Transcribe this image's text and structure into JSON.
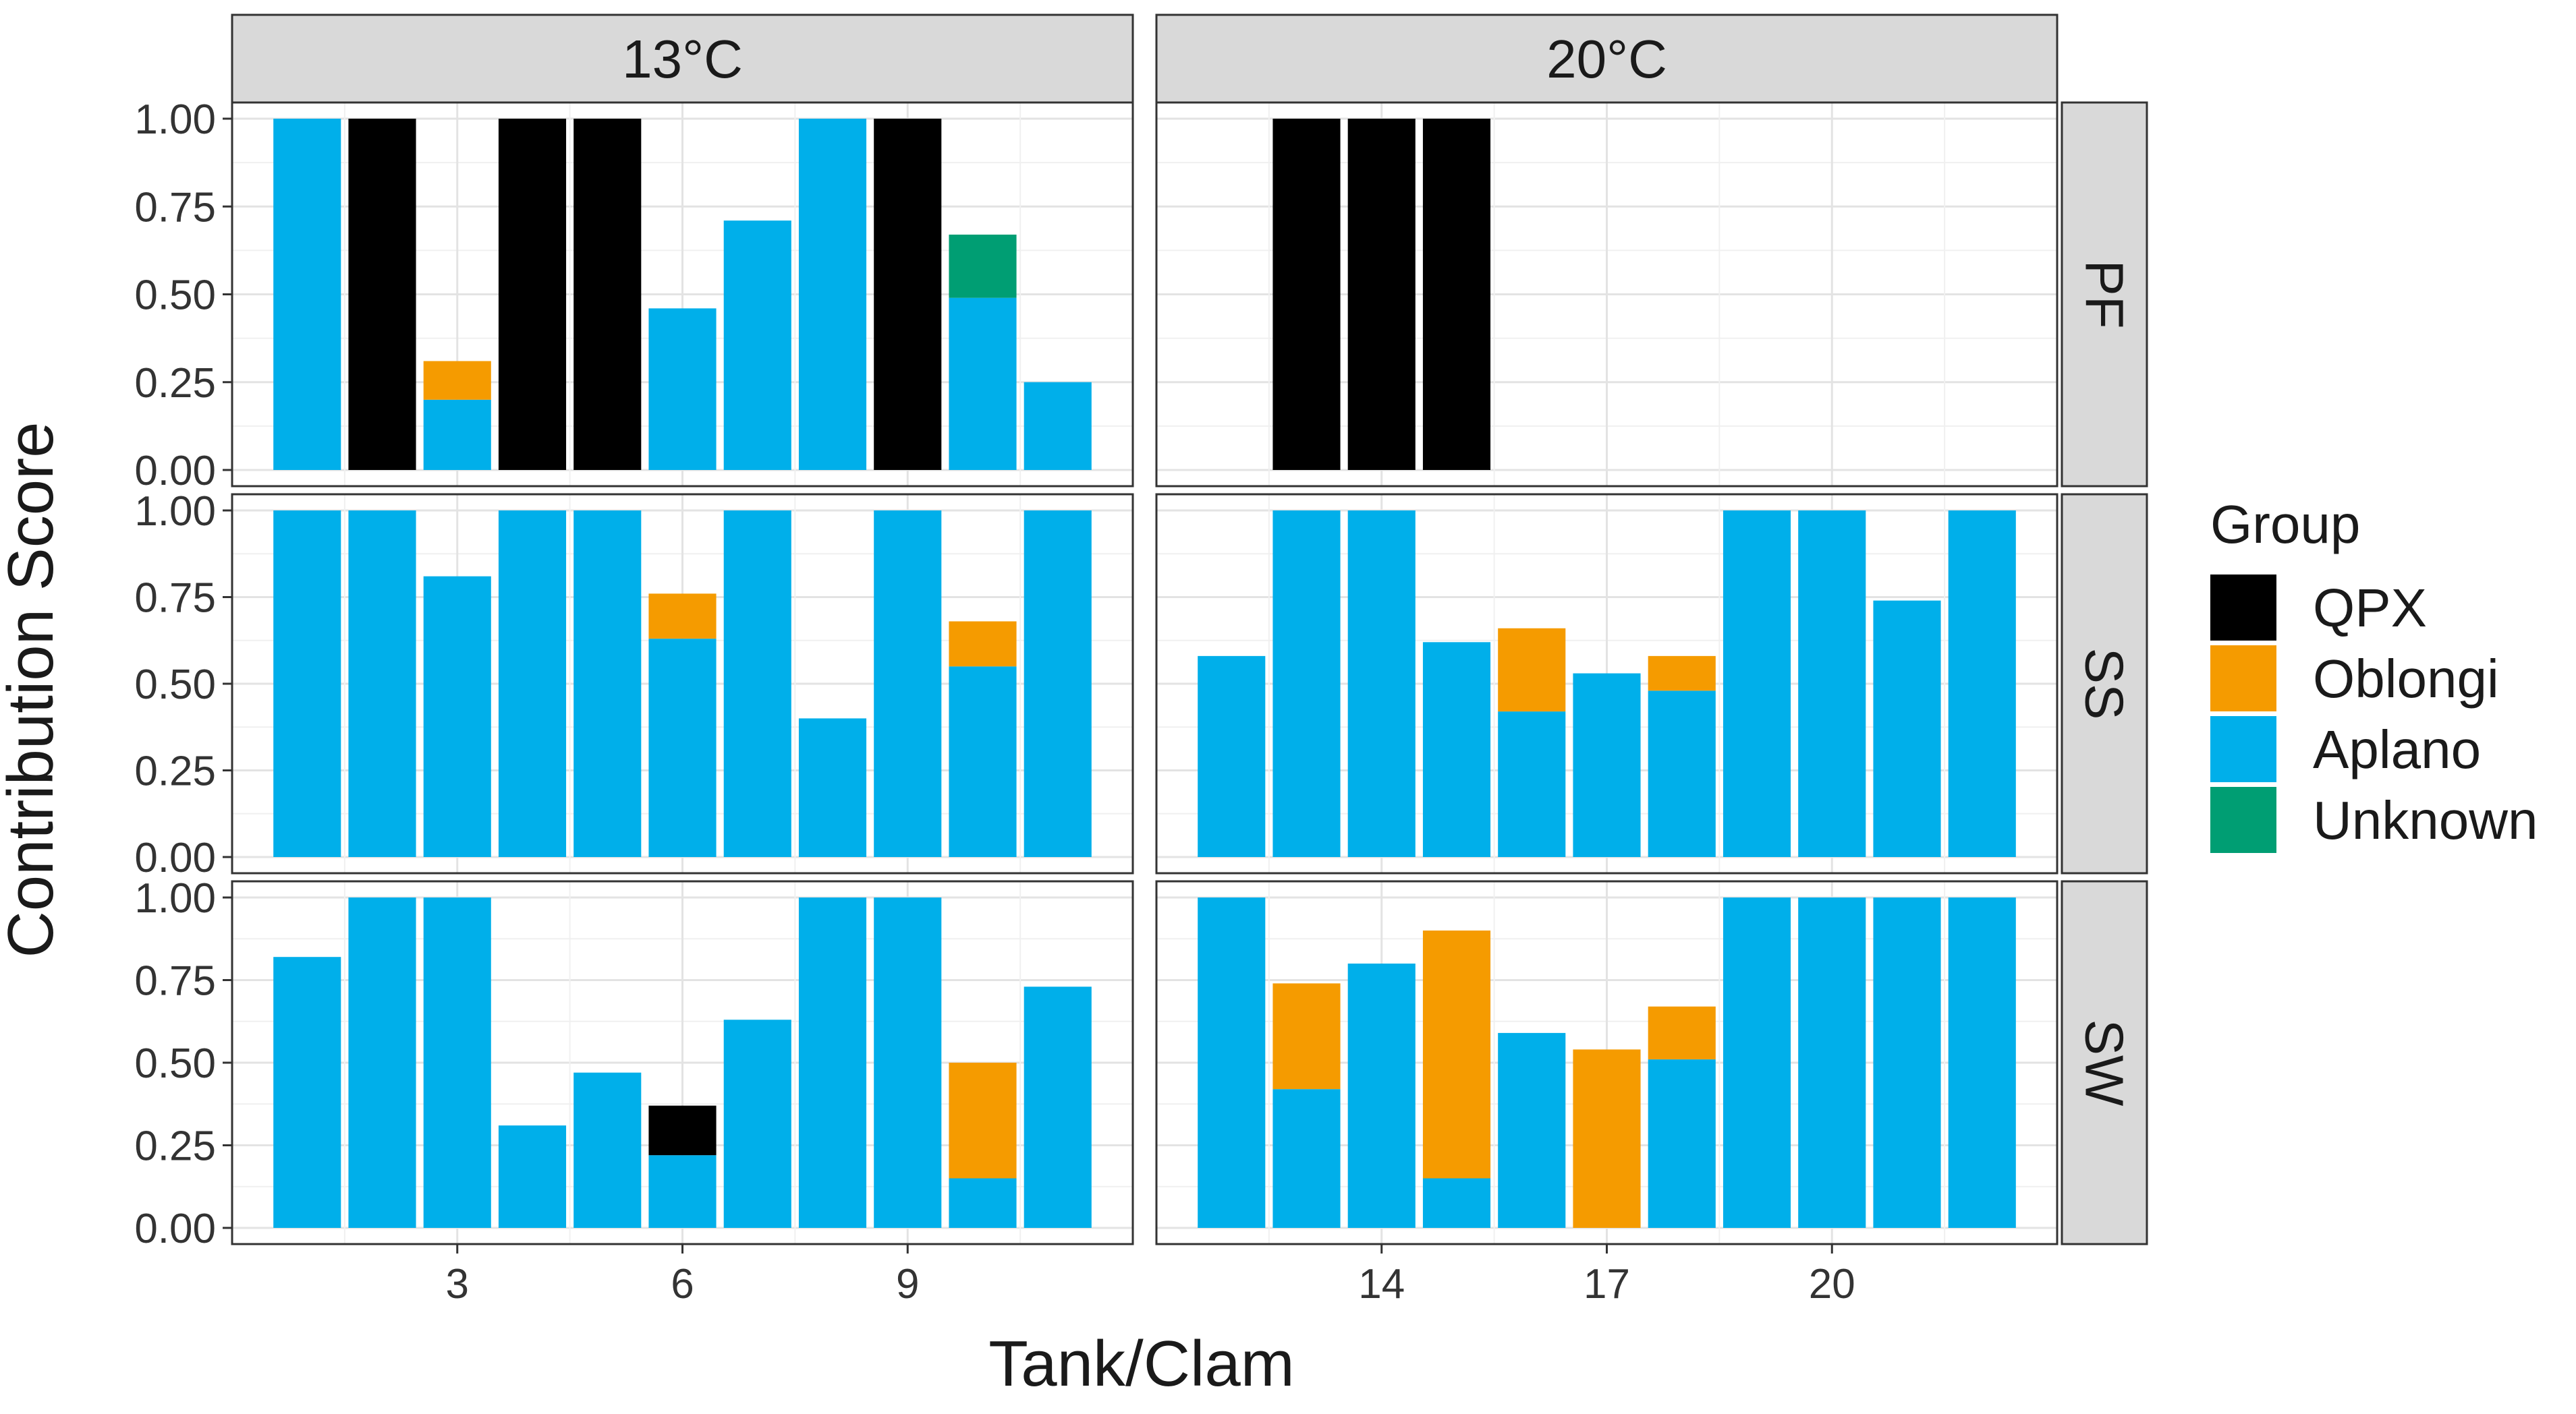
{
  "chart_data": {
    "type": "bar",
    "stacked": true,
    "xlabel": "Tank/Clam",
    "ylabel": "Contribution Score",
    "ylim": [
      0,
      1
    ],
    "y_ticks": [
      "0.00",
      "0.25",
      "0.50",
      "0.75",
      "1.00"
    ],
    "y_tick_values": [
      0,
      0.25,
      0.5,
      0.75,
      1
    ],
    "grid": true,
    "columns": [
      {
        "label": "13°C",
        "xlim": [
          0,
          12
        ],
        "x_ticks": [
          3,
          6,
          9
        ],
        "x_tick_labels": [
          "3",
          "6",
          "9"
        ]
      },
      {
        "label": "20°C",
        "xlim": [
          11,
          23
        ],
        "x_ticks": [
          14,
          17,
          20
        ],
        "x_tick_labels": [
          "14",
          "17",
          "20"
        ]
      }
    ],
    "rows": [
      "PF",
      "SS",
      "SW"
    ],
    "legend": {
      "title": "Group",
      "position": "right",
      "items": [
        {
          "name": "QPX",
          "color": "#000000"
        },
        {
          "name": "Oblongi",
          "color": "#F59B00"
        },
        {
          "name": "Aplano",
          "color": "#00AFEA"
        },
        {
          "name": "Unknown",
          "color": "#009E73"
        }
      ]
    },
    "series_order": [
      "Aplano",
      "Unknown",
      "Oblongi",
      "QPX"
    ],
    "panels": [
      {
        "row": "PF",
        "col": 0,
        "bars": [
          {
            "x": 1,
            "Aplano": 1.0
          },
          {
            "x": 2,
            "QPX": 1.0
          },
          {
            "x": 3,
            "Aplano": 0.2,
            "Oblongi": 0.11
          },
          {
            "x": 4,
            "QPX": 1.0
          },
          {
            "x": 5,
            "QPX": 1.0
          },
          {
            "x": 6,
            "Aplano": 0.46
          },
          {
            "x": 7,
            "Aplano": 0.71
          },
          {
            "x": 8,
            "Aplano": 1.0
          },
          {
            "x": 9,
            "QPX": 1.0
          },
          {
            "x": 10,
            "Unknown": 0.18,
            "Aplano": 0.49
          },
          {
            "x": 11,
            "Aplano": 0.25
          }
        ]
      },
      {
        "row": "PF",
        "col": 1,
        "bars": [
          {
            "x": 13,
            "QPX": 1.0
          },
          {
            "x": 14,
            "QPX": 1.0
          },
          {
            "x": 15,
            "QPX": 1.0
          }
        ]
      },
      {
        "row": "SS",
        "col": 0,
        "bars": [
          {
            "x": 1,
            "Aplano": 1.0
          },
          {
            "x": 2,
            "Aplano": 1.0
          },
          {
            "x": 3,
            "Aplano": 0.81
          },
          {
            "x": 4,
            "Aplano": 1.0
          },
          {
            "x": 5,
            "Aplano": 1.0
          },
          {
            "x": 6,
            "Aplano": 0.63,
            "Oblongi": 0.13
          },
          {
            "x": 7,
            "Aplano": 1.0
          },
          {
            "x": 8,
            "Aplano": 0.4
          },
          {
            "x": 9,
            "Aplano": 1.0
          },
          {
            "x": 10,
            "Aplano": 0.55,
            "Oblongi": 0.13
          },
          {
            "x": 11,
            "Aplano": 1.0
          }
        ]
      },
      {
        "row": "SS",
        "col": 1,
        "bars": [
          {
            "x": 12,
            "Aplano": 0.58
          },
          {
            "x": 13,
            "Aplano": 1.0
          },
          {
            "x": 14,
            "Aplano": 1.0
          },
          {
            "x": 15,
            "Aplano": 0.62
          },
          {
            "x": 16,
            "Aplano": 0.42,
            "Oblongi": 0.24
          },
          {
            "x": 17,
            "Aplano": 0.53
          },
          {
            "x": 18,
            "Aplano": 0.48,
            "Oblongi": 0.1
          },
          {
            "x": 19,
            "Aplano": 1.0
          },
          {
            "x": 20,
            "Aplano": 1.0
          },
          {
            "x": 21,
            "Aplano": 0.74
          },
          {
            "x": 22,
            "Aplano": 1.0
          }
        ]
      },
      {
        "row": "SW",
        "col": 0,
        "bars": [
          {
            "x": 1,
            "Aplano": 0.82
          },
          {
            "x": 2,
            "Aplano": 1.0
          },
          {
            "x": 3,
            "Aplano": 1.0
          },
          {
            "x": 4,
            "Aplano": 0.31
          },
          {
            "x": 5,
            "Aplano": 0.47
          },
          {
            "x": 6,
            "Aplano": 0.22,
            "QPX": 0.15
          },
          {
            "x": 7,
            "Aplano": 0.63
          },
          {
            "x": 8,
            "Aplano": 1.0
          },
          {
            "x": 9,
            "Aplano": 1.0
          },
          {
            "x": 10,
            "Aplano": 0.15,
            "Oblongi": 0.35
          },
          {
            "x": 11,
            "Aplano": 0.73
          }
        ]
      },
      {
        "row": "SW",
        "col": 1,
        "bars": [
          {
            "x": 12,
            "Aplano": 1.0
          },
          {
            "x": 13,
            "Aplano": 0.42,
            "Oblongi": 0.32
          },
          {
            "x": 14,
            "Aplano": 0.8
          },
          {
            "x": 15,
            "Aplano": 0.15,
            "Oblongi": 0.75
          },
          {
            "x": 16,
            "Aplano": 0.59
          },
          {
            "x": 17,
            "Oblongi": 0.54
          },
          {
            "x": 18,
            "Aplano": 0.51,
            "Oblongi": 0.16
          },
          {
            "x": 19,
            "Aplano": 1.0
          },
          {
            "x": 20,
            "Aplano": 1.0
          },
          {
            "x": 21,
            "Aplano": 1.0
          },
          {
            "x": 22,
            "Aplano": 1.0
          }
        ]
      }
    ]
  }
}
